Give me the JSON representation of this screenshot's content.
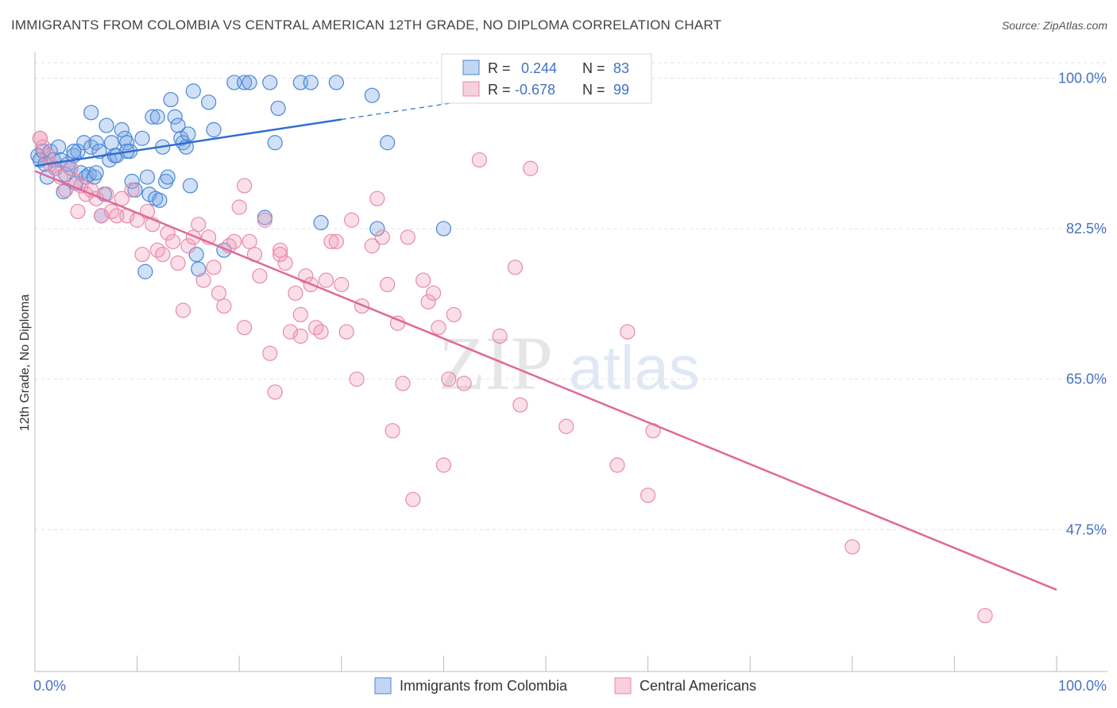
{
  "header": {
    "title": "IMMIGRANTS FROM COLOMBIA VS CENTRAL AMERICAN 12TH GRADE, NO DIPLOMA CORRELATION CHART",
    "source": "Source: ZipAtlas.com"
  },
  "watermark": {
    "zip": "ZIP",
    "atlas": "atlas"
  },
  "colors": {
    "blue": "#4a86d6",
    "blue_fill": "rgba(120,165,230,0.35)",
    "blue_line": "#2f6fcf",
    "pink": "#e88aa8",
    "pink_fill": "rgba(240,150,180,0.30)",
    "pink_line": "#e0689a",
    "axis_text": "#4472c4"
  },
  "chart_data": {
    "type": "scatter",
    "xlabel": "",
    "ylabel": "12th Grade, No Diploma",
    "xlim": [
      0,
      100
    ],
    "ylim": [
      31,
      103
    ],
    "x_tick_labels": [
      "0.0%",
      "100.0%"
    ],
    "y_ticks": [
      47.5,
      65.0,
      82.5,
      100.0
    ],
    "y_tick_labels": [
      "47.5%",
      "65.0%",
      "82.5%",
      "100.0%"
    ],
    "grid": true,
    "legend": {
      "placement": "top-center",
      "entries": [
        {
          "r_label": "R =",
          "r_value": "0.244",
          "n_label": "N =",
          "n_value": "83"
        },
        {
          "r_label": "R =",
          "r_value": "-0.678",
          "n_label": "N =",
          "n_value": "99"
        }
      ]
    },
    "bottom_legend": [
      "Immigrants from Colombia",
      "Central Americans"
    ],
    "series": [
      {
        "name": "Immigrants from Colombia",
        "trend": {
          "x": [
            0,
            30
          ],
          "y": [
            89.8,
            95.2
          ],
          "dashed_to": [
            43,
            97.5
          ]
        },
        "points": [
          [
            0.3,
            91
          ],
          [
            0.5,
            90.5
          ],
          [
            0.8,
            91.5
          ],
          [
            1.0,
            90
          ],
          [
            1.2,
            88.5
          ],
          [
            1.5,
            91.5
          ],
          [
            1.8,
            90.5
          ],
          [
            2.0,
            89.5
          ],
          [
            2.3,
            92
          ],
          [
            2.5,
            90.5
          ],
          [
            2.8,
            86.8
          ],
          [
            3.0,
            88.8
          ],
          [
            3.2,
            90
          ],
          [
            3.5,
            89.5
          ],
          [
            3.8,
            91
          ],
          [
            4.0,
            87.8
          ],
          [
            4.2,
            91.5
          ],
          [
            4.5,
            89
          ],
          [
            4.8,
            92.5
          ],
          [
            5.0,
            88.5
          ],
          [
            5.3,
            88.8
          ],
          [
            5.5,
            92
          ],
          [
            5.8,
            88.5
          ],
          [
            6.0,
            92.5
          ],
          [
            6.3,
            91.5
          ],
          [
            6.5,
            84
          ],
          [
            6.8,
            86.5
          ],
          [
            7.0,
            94.5
          ],
          [
            7.3,
            90.5
          ],
          [
            7.5,
            92.5
          ],
          [
            7.8,
            91
          ],
          [
            8.0,
            91
          ],
          [
            8.5,
            94
          ],
          [
            8.8,
            93
          ],
          [
            9.0,
            92.5
          ],
          [
            9.3,
            91.5
          ],
          [
            9.5,
            88
          ],
          [
            9.8,
            87
          ],
          [
            10.5,
            93
          ],
          [
            10.8,
            77.5
          ],
          [
            11.0,
            88.5
          ],
          [
            11.2,
            86.5
          ],
          [
            11.5,
            95.5
          ],
          [
            11.8,
            86
          ],
          [
            12.2,
            85.8
          ],
          [
            12.5,
            92
          ],
          [
            12.8,
            88
          ],
          [
            13.0,
            88.5
          ],
          [
            13.3,
            97.5
          ],
          [
            13.7,
            95.5
          ],
          [
            14.0,
            94.5
          ],
          [
            14.3,
            93
          ],
          [
            14.5,
            92.5
          ],
          [
            14.8,
            92
          ],
          [
            15.0,
            93.5
          ],
          [
            15.2,
            87.5
          ],
          [
            15.5,
            98.5
          ],
          [
            15.8,
            79.5
          ],
          [
            16.0,
            77.8
          ],
          [
            17.0,
            97.2
          ],
          [
            17.5,
            94
          ],
          [
            19.5,
            99.5
          ],
          [
            20.5,
            99.5
          ],
          [
            21.0,
            99.5
          ],
          [
            23.0,
            99.5
          ],
          [
            23.8,
            96.5
          ],
          [
            23.5,
            92.5
          ],
          [
            26.0,
            99.5
          ],
          [
            27.0,
            99.5
          ],
          [
            28.0,
            83.2
          ],
          [
            29.5,
            99.5
          ],
          [
            33.0,
            98
          ],
          [
            33.5,
            82.5
          ],
          [
            34.5,
            92.5
          ],
          [
            40.0,
            82.5
          ],
          [
            41.5,
            98.8
          ],
          [
            18.5,
            80
          ],
          [
            22.5,
            83.8
          ],
          [
            5.5,
            96
          ],
          [
            12.0,
            95.5
          ],
          [
            3.8,
            91.5
          ],
          [
            6.0,
            89
          ],
          [
            9.0,
            91.5
          ]
        ]
      },
      {
        "name": "Central Americans",
        "trend": {
          "x": [
            0,
            100
          ],
          "y": [
            89.2,
            40.5
          ]
        },
        "points": [
          [
            0.5,
            93
          ],
          [
            0.8,
            92
          ],
          [
            1.2,
            91
          ],
          [
            1.5,
            90
          ],
          [
            2.0,
            89.5
          ],
          [
            2.5,
            88.5
          ],
          [
            3.0,
            87
          ],
          [
            3.5,
            89.5
          ],
          [
            4.0,
            88
          ],
          [
            4.5,
            87.5
          ],
          [
            5.0,
            86.5
          ],
          [
            5.5,
            87
          ],
          [
            6.0,
            86
          ],
          [
            6.5,
            84
          ],
          [
            7.0,
            86.5
          ],
          [
            7.5,
            84.5
          ],
          [
            8.0,
            84
          ],
          [
            8.5,
            86
          ],
          [
            9.0,
            84
          ],
          [
            9.5,
            87
          ],
          [
            10.0,
            83.5
          ],
          [
            10.5,
            79.5
          ],
          [
            11.0,
            84.5
          ],
          [
            11.5,
            83
          ],
          [
            12.0,
            80
          ],
          [
            12.5,
            79.5
          ],
          [
            13.0,
            82
          ],
          [
            13.5,
            81
          ],
          [
            14.0,
            78.5
          ],
          [
            14.5,
            73
          ],
          [
            15.0,
            80.5
          ],
          [
            15.5,
            81.5
          ],
          [
            16.0,
            83
          ],
          [
            16.5,
            76.5
          ],
          [
            17.0,
            81.5
          ],
          [
            17.5,
            78
          ],
          [
            18.0,
            75
          ],
          [
            18.5,
            73.5
          ],
          [
            19.0,
            80.5
          ],
          [
            19.5,
            81
          ],
          [
            20.0,
            85
          ],
          [
            20.5,
            87.5
          ],
          [
            21.0,
            81
          ],
          [
            21.5,
            79.5
          ],
          [
            22.0,
            77
          ],
          [
            22.5,
            83.5
          ],
          [
            23.0,
            68
          ],
          [
            23.5,
            63.5
          ],
          [
            24.0,
            80
          ],
          [
            24.5,
            78.5
          ],
          [
            25.0,
            70.5
          ],
          [
            25.5,
            75
          ],
          [
            26.0,
            72.5
          ],
          [
            26.5,
            77
          ],
          [
            27.0,
            76
          ],
          [
            27.5,
            71
          ],
          [
            28.0,
            70.5
          ],
          [
            28.5,
            76.5
          ],
          [
            29.0,
            81
          ],
          [
            29.5,
            81
          ],
          [
            30.0,
            76
          ],
          [
            30.5,
            70.5
          ],
          [
            31.0,
            83.5
          ],
          [
            31.5,
            65
          ],
          [
            32.0,
            73.5
          ],
          [
            33.0,
            80.5
          ],
          [
            33.5,
            86
          ],
          [
            34.0,
            81.5
          ],
          [
            34.5,
            76
          ],
          [
            35.0,
            59
          ],
          [
            35.5,
            71.5
          ],
          [
            36.0,
            64.5
          ],
          [
            36.5,
            81.5
          ],
          [
            37.0,
            51
          ],
          [
            38.0,
            76.5
          ],
          [
            38.5,
            74
          ],
          [
            39.0,
            75
          ],
          [
            39.5,
            71
          ],
          [
            40.0,
            55
          ],
          [
            40.5,
            65
          ],
          [
            41.0,
            72.5
          ],
          [
            42.0,
            64.5
          ],
          [
            43.5,
            90.5
          ],
          [
            45.5,
            70
          ],
          [
            47.0,
            78
          ],
          [
            47.5,
            62
          ],
          [
            48.5,
            89.5
          ],
          [
            52.0,
            59.5
          ],
          [
            57.0,
            55
          ],
          [
            58.0,
            70.5
          ],
          [
            60.0,
            51.5
          ],
          [
            60.5,
            59
          ],
          [
            80.0,
            45.5
          ],
          [
            93.0,
            37.5
          ],
          [
            20.5,
            71
          ],
          [
            26.0,
            70
          ],
          [
            24.0,
            79.5
          ],
          [
            0.5,
            93
          ],
          [
            4.2,
            84.5
          ]
        ]
      }
    ]
  }
}
